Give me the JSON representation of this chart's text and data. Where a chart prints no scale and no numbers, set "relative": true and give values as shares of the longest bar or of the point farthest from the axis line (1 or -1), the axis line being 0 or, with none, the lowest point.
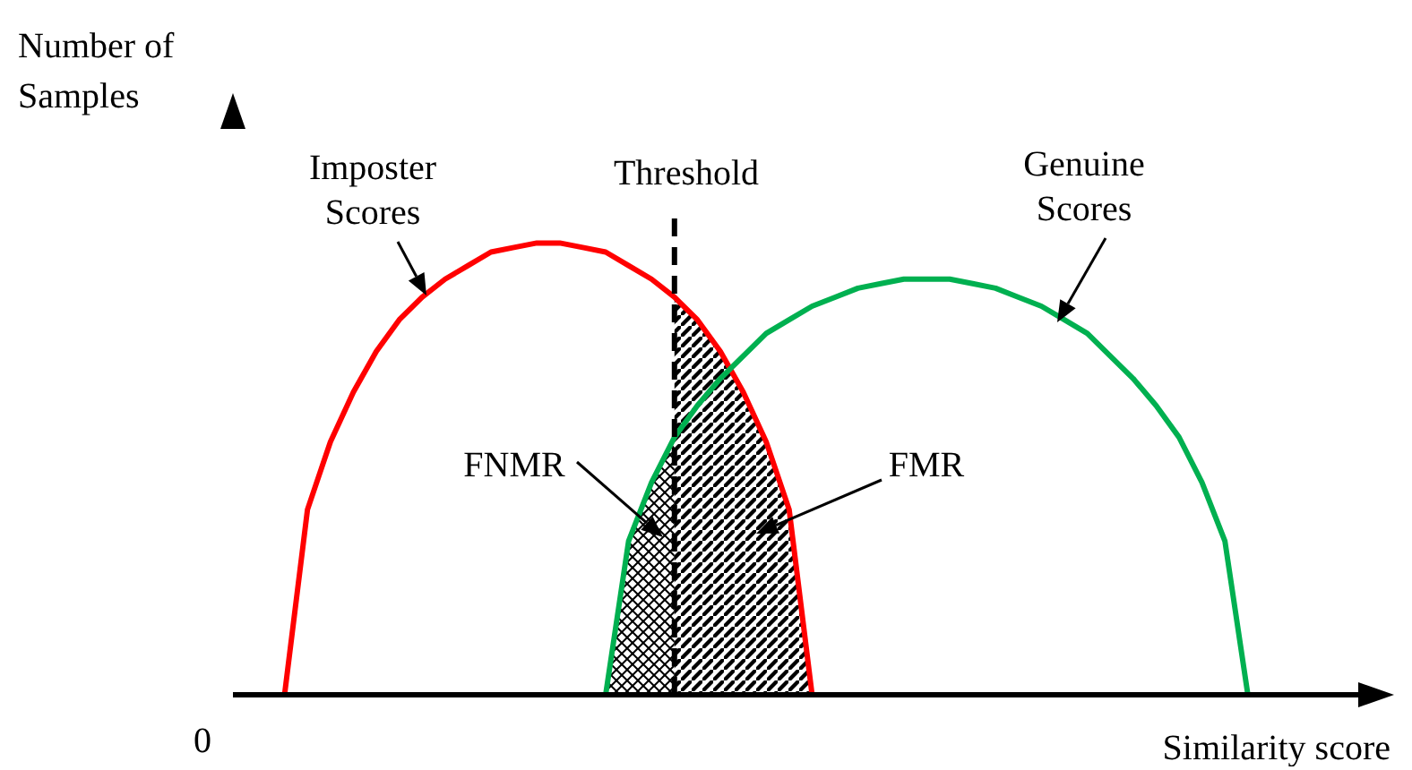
{
  "chart_data": {
    "type": "line",
    "relative": true,
    "xlabel": "Similarity score",
    "ylabel": "Number of Samples",
    "annotations": [
      "FNMR",
      "FMR",
      "0",
      "Threshold"
    ],
    "categories": [
      null,
      null,
      null,
      null,
      null,
      null,
      null,
      null,
      null,
      null,
      null,
      null,
      null,
      null,
      null,
      null,
      null,
      null,
      null,
      null,
      null,
      null,
      null,
      null,
      null,
      null,
      null,
      null,
      null,
      null,
      null,
      null,
      null,
      null,
      null,
      null,
      null,
      null,
      null,
      null,
      null,
      null,
      null
    ],
    "series": [
      {
        "name": "Imposter Scores",
        "color": "#ff0000",
        "values": [
          0,
          0.41,
          0.56,
          0.67,
          0.76,
          0.83,
          0.88,
          0.92,
          0.95,
          0.98,
          0.99,
          1,
          1,
          0.99,
          0.98,
          0.95,
          0.92,
          0.88,
          0.83,
          0.76,
          0.67,
          0.56,
          0.41,
          0,
          null,
          null,
          null,
          null,
          null,
          null,
          null,
          null,
          null,
          null,
          null,
          null,
          null,
          null,
          null,
          null,
          null,
          null,
          null
        ]
      },
      {
        "name": "Genuine Scores",
        "color": "#00b050",
        "values": [
          null,
          null,
          null,
          null,
          null,
          null,
          null,
          null,
          null,
          null,
          null,
          null,
          null,
          null,
          0,
          0.34,
          0.47,
          0.57,
          0.64,
          0.7,
          0.75,
          0.8,
          0.83,
          0.86,
          0.88,
          0.9,
          0.91,
          0.92,
          0.92,
          0.92,
          0.91,
          0.9,
          0.88,
          0.86,
          0.83,
          0.8,
          0.75,
          0.7,
          0.64,
          0.57,
          0.47,
          0.34,
          0
        ]
      }
    ]
  }
}
